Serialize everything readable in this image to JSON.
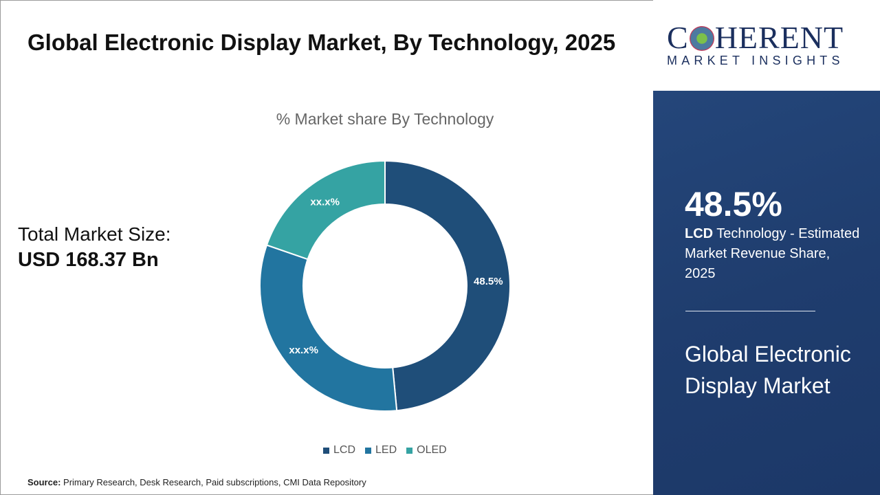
{
  "header": {
    "title": "Global Electronic Display Market, By Technology, 2025"
  },
  "market_size": {
    "label": "Total Market Size:",
    "value": "USD 168.37 Bn"
  },
  "chart_data": {
    "type": "pie",
    "style": "donut",
    "title": "% Market share By Technology",
    "categories": [
      "LCD",
      "LED",
      "OLED"
    ],
    "values": [
      48.5,
      31.8,
      19.7
    ],
    "data_labels": [
      "48.5%",
      "xx.x%",
      "xx.x%"
    ],
    "colors": [
      "#1f4e79",
      "#2275a0",
      "#35a3a3"
    ],
    "legend": "bottom"
  },
  "source": {
    "label": "Source:",
    "text": "Primary Research, Desk Research, Paid subscriptions, CMI Data Repository"
  },
  "logo": {
    "main_left": "C",
    "main_right": "HERENT",
    "sub": "MARKET INSIGHTS"
  },
  "side_panel": {
    "highlight_value": "48.5%",
    "highlight_bold": "LCD",
    "highlight_text": " Technology - Estimated Market Revenue Share, 2025",
    "market_name": "Global Electronic Display Market",
    "background": "#1f3d6e"
  }
}
